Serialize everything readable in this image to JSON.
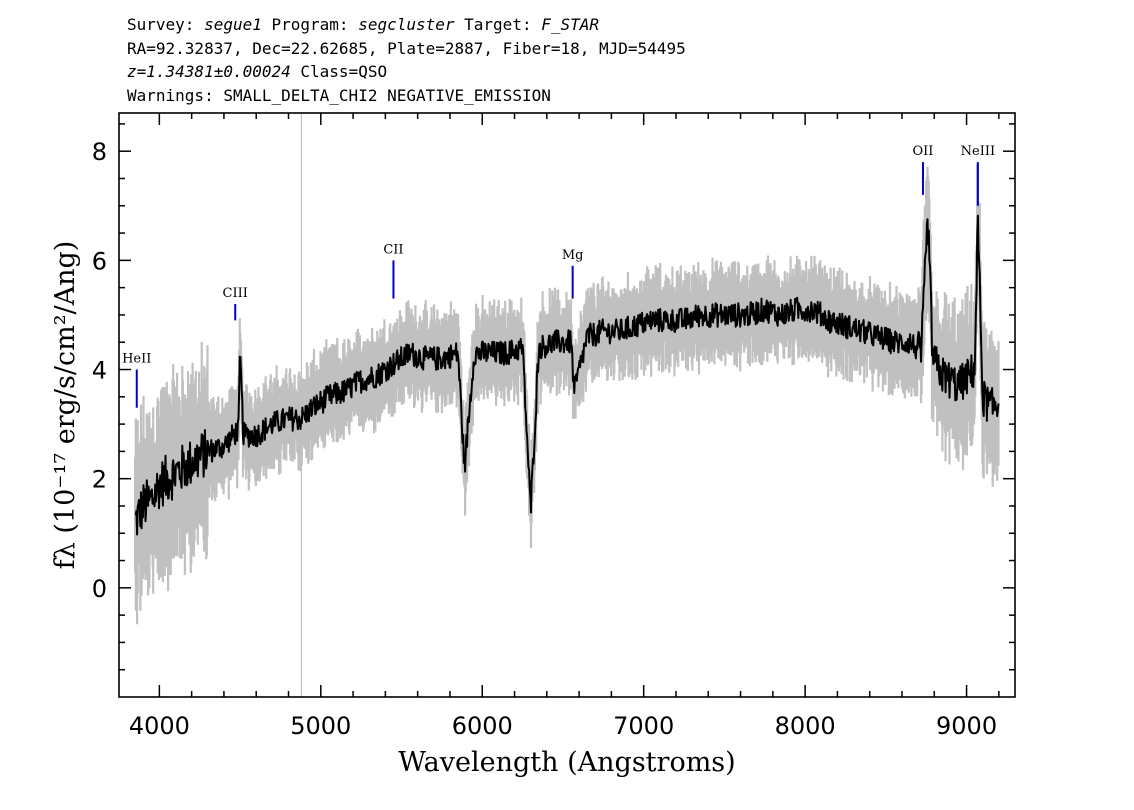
{
  "header": {
    "line1": {
      "survey_label": "Survey: ",
      "survey": "segue1",
      "program_label": " Program: ",
      "program": "segcluster",
      "target_label": " Target: ",
      "target": "F_STAR"
    },
    "line2": "RA=92.32837, Dec=22.62685, Plate=2887, Fiber=18, MJD=54495",
    "line3": {
      "redshift": "z=1.34381±0.00024",
      "class": " Class=QSO"
    },
    "line4": "Warnings: SMALL_DELTA_CHI2 NEGATIVE_EMISSION"
  },
  "colors": {
    "flux": "#000000",
    "error_band": "#c0c0c0",
    "line_marker": "#0000cc"
  },
  "chart_data": {
    "type": "line",
    "xlabel": "Wavelength (Angstroms)",
    "ylabel": "fλ (10⁻¹⁷ erg/s/cm²/Ang)",
    "xlim": [
      3750,
      9300
    ],
    "ylim": [
      -2.0,
      8.7
    ],
    "x_ticks": [
      4000,
      5000,
      6000,
      7000,
      8000,
      9000
    ],
    "y_ticks": [
      0,
      2,
      4,
      6,
      8
    ],
    "grid": false,
    "legend": "none",
    "series": [
      {
        "x": [
          3850,
          3900,
          3950,
          4000,
          4100,
          4200,
          4300,
          4400,
          4490,
          4500,
          4520,
          4600,
          4700,
          4800,
          4880,
          4950,
          5050,
          5150,
          5250,
          5350,
          5450,
          5550,
          5650,
          5750,
          5850,
          5890,
          5950,
          6050,
          6150,
          6250,
          6300,
          6350,
          6450,
          6550,
          6570,
          6650,
          6750,
          6850,
          6950,
          7050,
          7150,
          7250,
          7350,
          7450,
          7550,
          7650,
          7750,
          7850,
          7950,
          8050,
          8150,
          8250,
          8350,
          8450,
          8550,
          8650,
          8720,
          8760,
          8790,
          8850,
          8950,
          9050,
          9070,
          9100,
          9150,
          9200
        ],
        "values": [
          1.2,
          1.5,
          1.6,
          1.9,
          2.1,
          2.3,
          2.5,
          2.6,
          2.9,
          4.3,
          2.8,
          2.8,
          3.0,
          3.1,
          3.1,
          3.3,
          3.5,
          3.6,
          3.8,
          3.9,
          4.1,
          4.3,
          4.2,
          4.2,
          4.3,
          2.2,
          4.3,
          4.3,
          4.3,
          4.4,
          1.4,
          4.4,
          4.5,
          4.5,
          3.6,
          4.6,
          4.7,
          4.7,
          4.8,
          4.9,
          4.9,
          4.9,
          5.0,
          5.0,
          5.0,
          5.0,
          5.1,
          5.0,
          5.1,
          5.1,
          4.9,
          4.8,
          4.7,
          4.6,
          4.5,
          4.5,
          4.3,
          6.8,
          4.2,
          3.9,
          3.7,
          4.0,
          6.7,
          3.5,
          3.3,
          3.4
        ]
      }
    ],
    "annotations": [
      {
        "label": "HeII",
        "x": 3860,
        "y_top": 4.0,
        "y_bottom": 3.3
      },
      {
        "label": "CIII",
        "x": 4470,
        "y_top": 5.2,
        "y_bottom": 4.9
      },
      {
        "label": "CII",
        "x": 5450,
        "y_top": 6.0,
        "y_bottom": 5.3
      },
      {
        "label": "Mg",
        "x": 6560,
        "y_top": 5.9,
        "y_bottom": 5.3
      },
      {
        "label": "OII",
        "x": 8730,
        "y_top": 7.8,
        "y_bottom": 7.2
      },
      {
        "label": "NeIII",
        "x": 9070,
        "y_top": 7.8,
        "y_bottom": 7.0
      }
    ]
  }
}
